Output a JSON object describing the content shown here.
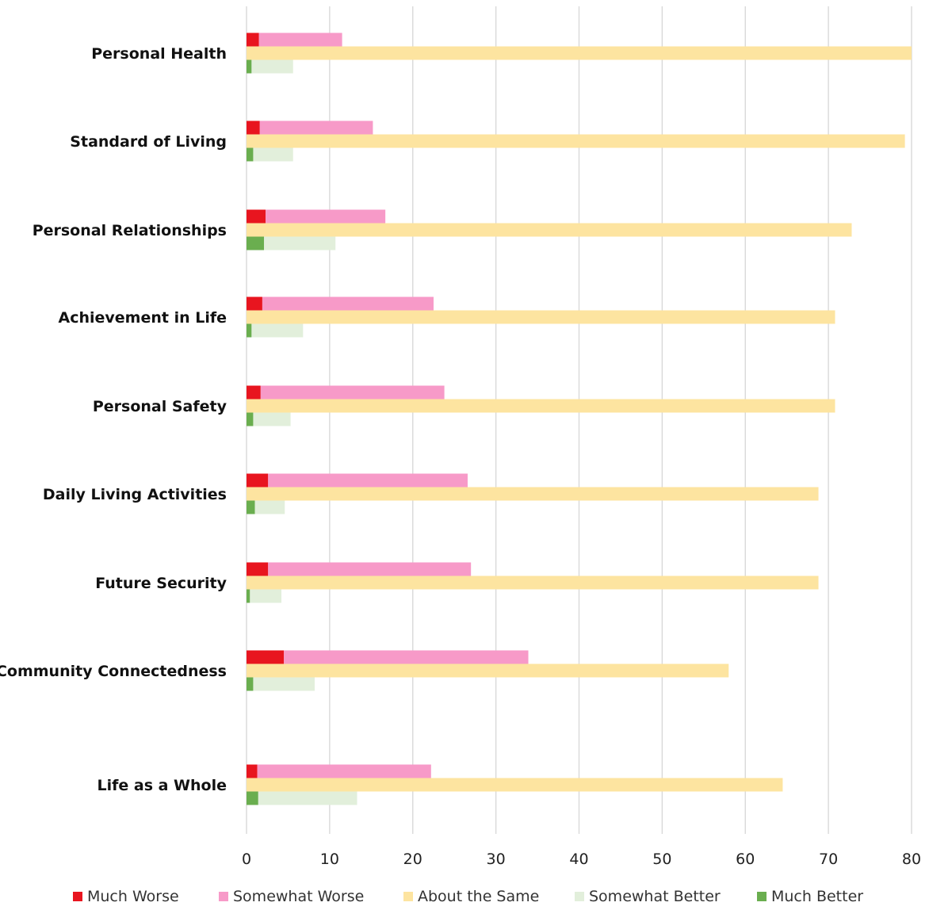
{
  "chart_data": {
    "type": "bar",
    "orientation": "horizontal",
    "title": "",
    "xlabel": "",
    "ylabel": "",
    "xlim": [
      0,
      80
    ],
    "x_ticks": [
      0,
      10,
      20,
      30,
      40,
      50,
      60,
      70,
      80
    ],
    "grid": true,
    "legend_position": "bottom",
    "categories": [
      "Personal Health",
      "Standard of Living",
      "Personal Relationships",
      "Achievement in Life",
      "Personal Safety",
      "Daily Living Activities",
      "Future Security",
      "Community Connectedness",
      "Life as a Whole"
    ],
    "series": [
      {
        "name": "Much Worse",
        "color": "#e8151f",
        "values": [
          1.5,
          1.6,
          2.3,
          1.9,
          1.7,
          2.6,
          2.6,
          4.5,
          1.3
        ]
      },
      {
        "name": "Somewhat Worse",
        "color": "#f79ac8",
        "values": [
          11.5,
          15.2,
          16.7,
          22.5,
          23.8,
          26.6,
          27.0,
          33.9,
          22.2
        ]
      },
      {
        "name": "About the Same",
        "color": "#fde4a0",
        "values": [
          80.0,
          79.2,
          72.8,
          70.8,
          70.8,
          68.8,
          68.8,
          58.0,
          64.5
        ]
      },
      {
        "name": "Somewhat Better",
        "color": "#e2efdb",
        "values": [
          5.6,
          5.6,
          10.7,
          6.8,
          5.3,
          4.6,
          4.2,
          8.2,
          13.3
        ]
      },
      {
        "name": "Much Better",
        "color": "#6aae4f",
        "values": [
          0.6,
          0.8,
          2.1,
          0.6,
          0.8,
          1.0,
          0.4,
          0.8,
          1.4
        ]
      }
    ]
  }
}
